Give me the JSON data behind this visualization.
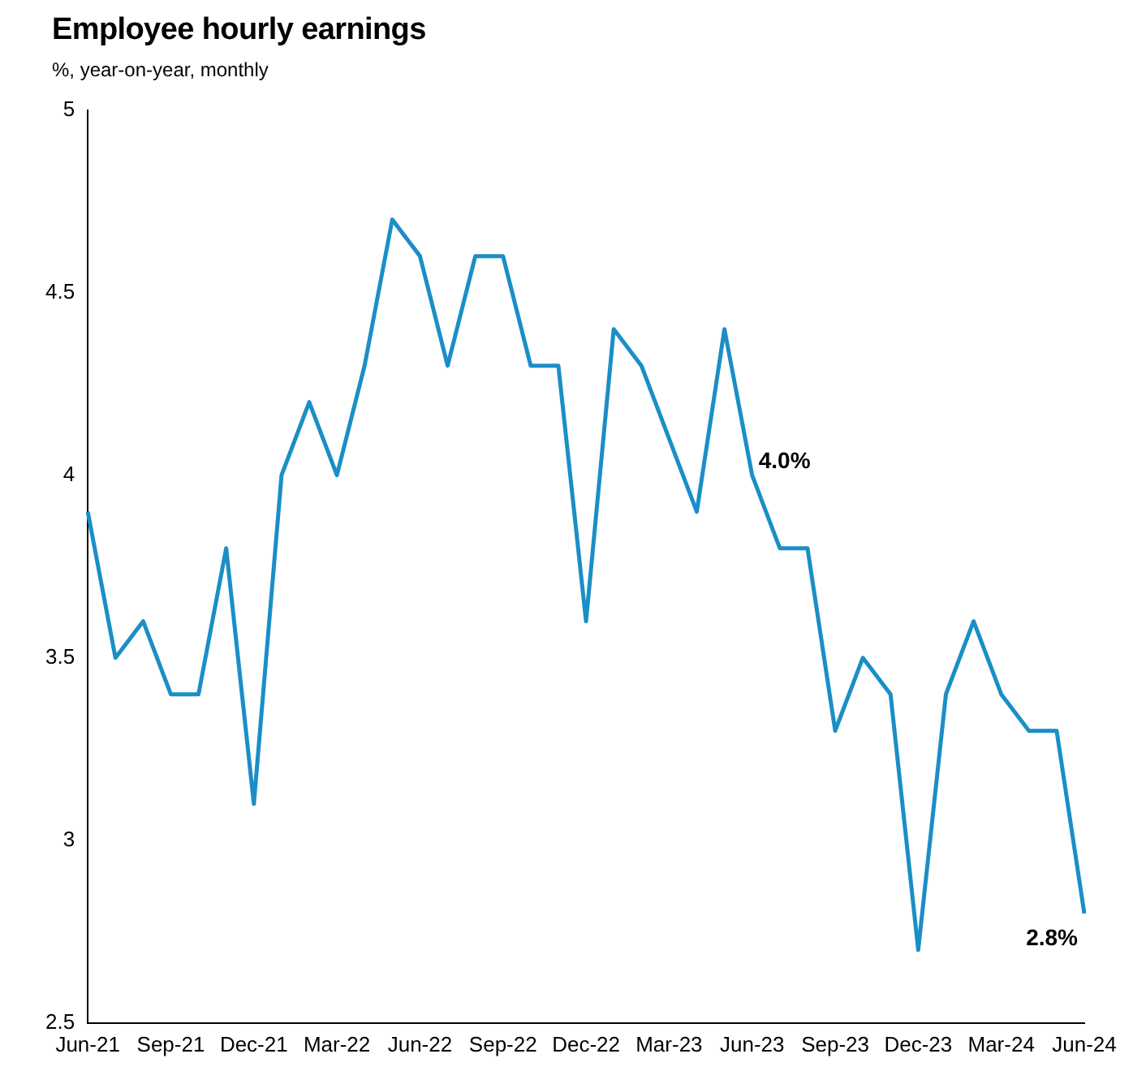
{
  "chart_data": {
    "type": "line",
    "title": "Employee hourly earnings",
    "subtitle": "%, year-on-year, monthly",
    "categories": [
      "Jun-21",
      null,
      null,
      "Sep-21",
      null,
      null,
      "Dec-21",
      null,
      null,
      "Mar-22",
      null,
      null,
      "Jun-22",
      null,
      null,
      "Sep-22",
      null,
      null,
      "Dec-22",
      null,
      null,
      "Mar-23",
      null,
      null,
      "Jun-23",
      null,
      null,
      "Sep-23",
      null,
      null,
      "Dec-23",
      null,
      null,
      "Mar-24",
      null,
      null,
      "Jun-24"
    ],
    "series": [
      {
        "color": "#1b8ec6",
        "values": [
          3.9,
          3.5,
          3.6,
          3.4,
          3.4,
          3.8,
          3.1,
          4.0,
          4.2,
          4.0,
          4.3,
          4.7,
          4.6,
          4.3,
          4.6,
          4.6,
          4.3,
          4.3,
          3.6,
          4.4,
          4.3,
          4.1,
          3.9,
          4.4,
          4.0,
          3.8,
          3.8,
          3.3,
          3.5,
          3.4,
          2.7,
          3.4,
          3.6,
          3.4,
          3.3,
          3.3,
          2.8
        ]
      }
    ],
    "ylim": [
      2.5,
      5
    ],
    "yticks": [
      2.5,
      3,
      3.5,
      4,
      4.5,
      5
    ],
    "grid": false,
    "legend": false,
    "marker": "none",
    "line_style": "solid",
    "annotations": [
      {
        "text": "4.0%",
        "x": "Jun-23",
        "y": 4.0
      },
      {
        "text": "2.8%",
        "x": "Jun-24",
        "y": 2.8
      }
    ]
  }
}
